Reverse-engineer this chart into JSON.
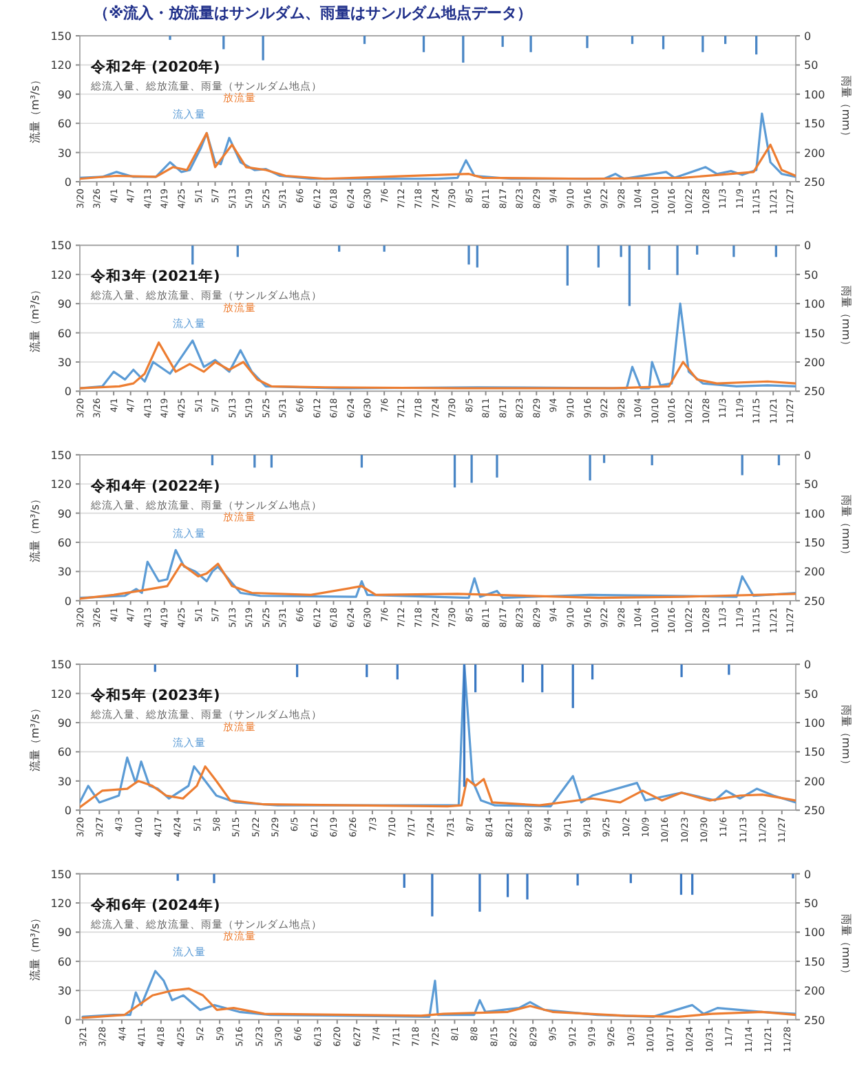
{
  "chart_data": [
    {
      "type": "line",
      "title": "令和2年 (2020年)",
      "subtitle": "総流入量、総放流量、雨量（サンルダム地点）",
      "ylabel": "流量（m³/s）",
      "y2label": "雨量（mm）",
      "annotations": [
        "（※流入・放流量はサンルダム、雨量はサンルダム地点データ）"
      ],
      "grid": "y",
      "ylim": [
        0,
        150
      ],
      "yticks": [
        0,
        30,
        60,
        90,
        120,
        150
      ],
      "y2lim": [
        250,
        0
      ],
      "y2ticks": [
        0,
        50,
        100,
        150,
        200,
        250
      ],
      "xlim": [
        "2020-03-20",
        "2020-11-29"
      ],
      "xticks": [
        {
          "value": "2020-03-20",
          "label": "3/20"
        },
        {
          "value": "2020-03-26",
          "label": "3/26"
        },
        {
          "value": "2020-04-01",
          "label": "4/1"
        },
        {
          "value": "2020-04-07",
          "label": "4/7"
        },
        {
          "value": "2020-04-13",
          "label": "4/13"
        },
        {
          "value": "2020-04-19",
          "label": "4/19"
        },
        {
          "value": "2020-04-25",
          "label": "4/25"
        },
        {
          "value": "2020-05-01",
          "label": "5/1"
        },
        {
          "value": "2020-05-07",
          "label": "5/7"
        },
        {
          "value": "2020-05-13",
          "label": "5/13"
        },
        {
          "value": "2020-05-19",
          "label": "5/19"
        },
        {
          "value": "2020-05-25",
          "label": "5/25"
        },
        {
          "value": "2020-05-31",
          "label": "5/31"
        },
        {
          "value": "2020-06-06",
          "label": "6/6"
        },
        {
          "value": "2020-06-12",
          "label": "6/12"
        },
        {
          "value": "2020-06-18",
          "label": "6/18"
        },
        {
          "value": "2020-06-24",
          "label": "6/24"
        },
        {
          "value": "2020-06-30",
          "label": "6/30"
        },
        {
          "value": "2020-07-06",
          "label": "7/6"
        },
        {
          "value": "2020-07-12",
          "label": "7/12"
        },
        {
          "value": "2020-07-18",
          "label": "7/18"
        },
        {
          "value": "2020-07-24",
          "label": "7/24"
        },
        {
          "value": "2020-07-30",
          "label": "7/30"
        },
        {
          "value": "2020-08-05",
          "label": "8/5"
        },
        {
          "value": "2020-08-11",
          "label": "8/11"
        },
        {
          "value": "2020-08-17",
          "label": "8/17"
        },
        {
          "value": "2020-08-23",
          "label": "8/23"
        },
        {
          "value": "2020-08-29",
          "label": "8/29"
        },
        {
          "value": "2020-09-04",
          "label": "9/4"
        },
        {
          "value": "2020-09-10",
          "label": "9/10"
        },
        {
          "value": "2020-09-16",
          "label": "9/16"
        },
        {
          "value": "2020-09-22",
          "label": "9/22"
        },
        {
          "value": "2020-09-28",
          "label": "9/28"
        },
        {
          "value": "2020-10-04",
          "label": "10/4"
        },
        {
          "value": "2020-10-10",
          "label": "10/10"
        },
        {
          "value": "2020-10-16",
          "label": "10/16"
        },
        {
          "value": "2020-10-22",
          "label": "10/22"
        },
        {
          "value": "2020-10-28",
          "label": "10/28"
        },
        {
          "value": "2020-11-03",
          "label": "11/3"
        },
        {
          "value": "2020-11-09",
          "label": "11/9"
        },
        {
          "value": "2020-11-15",
          "label": "11/15"
        },
        {
          "value": "2020-11-21",
          "label": "11/21"
        },
        {
          "value": "2020-11-27",
          "label": "11/27"
        }
      ],
      "series": [
        {
          "name": "流入量",
          "color": "#5b9bd5",
          "x": [
            "2020-03-20",
            "2020-03-28",
            "2020-04-02",
            "2020-04-08",
            "2020-04-16",
            "2020-04-21",
            "2020-04-25",
            "2020-04-28",
            "2020-05-02",
            "2020-05-04",
            "2020-05-07",
            "2020-05-09",
            "2020-05-12",
            "2020-05-16",
            "2020-05-21",
            "2020-05-25",
            "2020-05-30",
            "2020-06-10",
            "2020-07-25",
            "2020-08-01",
            "2020-08-04",
            "2020-08-07",
            "2020-08-20",
            "2020-09-22",
            "2020-09-26",
            "2020-09-29",
            "2020-10-14",
            "2020-10-17",
            "2020-10-28",
            "2020-11-01",
            "2020-11-06",
            "2020-11-10",
            "2020-11-15",
            "2020-11-17",
            "2020-11-20",
            "2020-11-24",
            "2020-11-29"
          ],
          "values": [
            4,
            5,
            10,
            5,
            5,
            20,
            10,
            12,
            35,
            50,
            20,
            18,
            45,
            20,
            12,
            13,
            6,
            3,
            3,
            4,
            22,
            6,
            3,
            3,
            8,
            3,
            10,
            4,
            15,
            8,
            11,
            7,
            12,
            70,
            20,
            8,
            5
          ]
        },
        {
          "name": "放流量",
          "color": "#ed7d31",
          "x": [
            "2020-03-20",
            "2020-04-02",
            "2020-04-16",
            "2020-04-22",
            "2020-04-27",
            "2020-05-04",
            "2020-05-07",
            "2020-05-13",
            "2020-05-18",
            "2020-05-25",
            "2020-06-01",
            "2020-06-15",
            "2020-08-05",
            "2020-08-10",
            "2020-09-15",
            "2020-10-20",
            "2020-11-06",
            "2020-11-14",
            "2020-11-20",
            "2020-11-24",
            "2020-11-29"
          ],
          "values": [
            3,
            6,
            5,
            15,
            12,
            50,
            15,
            38,
            15,
            12,
            6,
            3,
            8,
            4,
            3,
            4,
            8,
            10,
            38,
            12,
            6
          ]
        },
        {
          "type": "bar",
          "axis": "y2",
          "color": "#4a86c5",
          "x": [
            "2020-04-21",
            "2020-05-10",
            "2020-05-24",
            "2020-06-29",
            "2020-07-20",
            "2020-08-03",
            "2020-08-17",
            "2020-08-27",
            "2020-09-16",
            "2020-10-02",
            "2020-10-13",
            "2020-10-27",
            "2020-11-04",
            "2020-11-15"
          ],
          "values": [
            7,
            23,
            42,
            14,
            28,
            46,
            19,
            28,
            21,
            14,
            23,
            28,
            14,
            32
          ]
        }
      ]
    },
    {
      "type": "line",
      "title": "令和3年 (2021年)",
      "subtitle": "総流入量、総放流量、雨量（サンルダム地点）",
      "ylabel": "流量（m³/s）",
      "y2label": "雨量（mm）",
      "grid": "y",
      "ylim": [
        0,
        150
      ],
      "yticks": [
        0,
        30,
        60,
        90,
        120,
        150
      ],
      "y2lim": [
        250,
        0
      ],
      "y2ticks": [
        0,
        50,
        100,
        150,
        200,
        250
      ],
      "xlim": [
        "2021-03-20",
        "2021-11-29"
      ],
      "xticks": [
        {
          "value": "2021-03-20",
          "label": "3/20"
        },
        {
          "value": "2021-03-26",
          "label": "3/26"
        },
        {
          "value": "2021-04-01",
          "label": "4/1"
        },
        {
          "value": "2021-04-07",
          "label": "4/7"
        },
        {
          "value": "2021-04-13",
          "label": "4/13"
        },
        {
          "value": "2021-04-19",
          "label": "4/19"
        },
        {
          "value": "2021-04-25",
          "label": "4/25"
        },
        {
          "value": "2021-05-01",
          "label": "5/1"
        },
        {
          "value": "2021-05-07",
          "label": "5/7"
        },
        {
          "value": "2021-05-13",
          "label": "5/13"
        },
        {
          "value": "2021-05-19",
          "label": "5/19"
        },
        {
          "value": "2021-05-25",
          "label": "5/25"
        },
        {
          "value": "2021-05-31",
          "label": "5/31"
        },
        {
          "value": "2021-06-06",
          "label": "6/6"
        },
        {
          "value": "2021-06-12",
          "label": "6/12"
        },
        {
          "value": "2021-06-18",
          "label": "6/18"
        },
        {
          "value": "2021-06-24",
          "label": "6/24"
        },
        {
          "value": "2021-06-30",
          "label": "6/30"
        },
        {
          "value": "2021-07-06",
          "label": "7/6"
        },
        {
          "value": "2021-07-12",
          "label": "7/12"
        },
        {
          "value": "2021-07-18",
          "label": "7/18"
        },
        {
          "value": "2021-07-24",
          "label": "7/24"
        },
        {
          "value": "2021-07-30",
          "label": "7/30"
        },
        {
          "value": "2021-08-05",
          "label": "8/5"
        },
        {
          "value": "2021-08-11",
          "label": "8/11"
        },
        {
          "value": "2021-08-17",
          "label": "8/17"
        },
        {
          "value": "2021-08-23",
          "label": "8/23"
        },
        {
          "value": "2021-08-29",
          "label": "8/29"
        },
        {
          "value": "2021-09-04",
          "label": "9/4"
        },
        {
          "value": "2021-09-10",
          "label": "9/10"
        },
        {
          "value": "2021-09-16",
          "label": "9/16"
        },
        {
          "value": "2021-09-22",
          "label": "9/22"
        },
        {
          "value": "2021-09-28",
          "label": "9/28"
        },
        {
          "value": "2021-10-04",
          "label": "10/4"
        },
        {
          "value": "2021-10-10",
          "label": "10/10"
        },
        {
          "value": "2021-10-16",
          "label": "10/16"
        },
        {
          "value": "2021-10-22",
          "label": "10/22"
        },
        {
          "value": "2021-10-28",
          "label": "10/28"
        },
        {
          "value": "2021-11-03",
          "label": "11/3"
        },
        {
          "value": "2021-11-09",
          "label": "11/9"
        },
        {
          "value": "2021-11-15",
          "label": "11/15"
        },
        {
          "value": "2021-11-21",
          "label": "11/21"
        },
        {
          "value": "2021-11-27",
          "label": "11/27"
        }
      ],
      "series": [
        {
          "name": "流入量",
          "color": "#5b9bd5",
          "x": [
            "2021-03-20",
            "2021-03-28",
            "2021-04-01",
            "2021-04-05",
            "2021-04-08",
            "2021-04-12",
            "2021-04-15",
            "2021-04-21",
            "2021-04-29",
            "2021-05-03",
            "2021-05-07",
            "2021-05-12",
            "2021-05-16",
            "2021-05-20",
            "2021-05-25",
            "2021-06-20",
            "2021-08-08",
            "2021-09-30",
            "2021-10-02",
            "2021-10-05",
            "2021-10-08",
            "2021-10-09",
            "2021-10-12",
            "2021-10-16",
            "2021-10-19",
            "2021-10-22",
            "2021-10-27",
            "2021-11-08",
            "2021-11-19",
            "2021-11-29"
          ],
          "values": [
            3,
            5,
            20,
            12,
            22,
            10,
            30,
            18,
            52,
            25,
            32,
            20,
            42,
            20,
            5,
            3,
            4,
            3,
            25,
            3,
            3,
            30,
            6,
            8,
            90,
            20,
            8,
            5,
            6,
            5
          ]
        },
        {
          "name": "放流量",
          "color": "#ed7d31",
          "x": [
            "2021-03-20",
            "2021-04-03",
            "2021-04-08",
            "2021-04-12",
            "2021-04-17",
            "2021-04-23",
            "2021-04-28",
            "2021-05-03",
            "2021-05-07",
            "2021-05-12",
            "2021-05-17",
            "2021-05-22",
            "2021-05-27",
            "2021-06-15",
            "2021-08-01",
            "2021-09-25",
            "2021-10-15",
            "2021-10-20",
            "2021-10-25",
            "2021-11-01",
            "2021-11-19",
            "2021-11-29"
          ],
          "values": [
            3,
            5,
            8,
            18,
            50,
            20,
            28,
            20,
            30,
            22,
            30,
            12,
            5,
            4,
            3,
            3,
            5,
            30,
            12,
            8,
            10,
            8
          ]
        },
        {
          "type": "bar",
          "axis": "y2",
          "color": "#4a86c5",
          "x": [
            "2021-04-29",
            "2021-05-15",
            "2021-06-20",
            "2021-07-06",
            "2021-08-05",
            "2021-08-08",
            "2021-09-09",
            "2021-09-20",
            "2021-09-28",
            "2021-10-01",
            "2021-10-08",
            "2021-10-18",
            "2021-10-25",
            "2021-11-07",
            "2021-11-22"
          ],
          "values": [
            33,
            20,
            11,
            11,
            33,
            38,
            69,
            38,
            20,
            104,
            42,
            51,
            16,
            20,
            20
          ]
        }
      ]
    },
    {
      "type": "line",
      "title": "令和4年 (2022年)",
      "subtitle": "総流入量、総放流量、雨量（サンルダム地点）",
      "ylabel": "流量（m³/s）",
      "y2label": "雨量（mm）",
      "grid": "y",
      "ylim": [
        0,
        150
      ],
      "yticks": [
        0,
        30,
        60,
        90,
        120,
        150
      ],
      "y2lim": [
        250,
        0
      ],
      "y2ticks": [
        0,
        50,
        100,
        150,
        200,
        250
      ],
      "xlim": [
        "2022-03-20",
        "2022-11-29"
      ],
      "xticks": [
        {
          "value": "2022-03-20",
          "label": "3/20"
        },
        {
          "value": "2022-03-26",
          "label": "3/26"
        },
        {
          "value": "2022-04-01",
          "label": "4/1"
        },
        {
          "value": "2022-04-07",
          "label": "4/7"
        },
        {
          "value": "2022-04-13",
          "label": "4/13"
        },
        {
          "value": "2022-04-19",
          "label": "4/19"
        },
        {
          "value": "2022-04-25",
          "label": "4/25"
        },
        {
          "value": "2022-05-01",
          "label": "5/1"
        },
        {
          "value": "2022-05-07",
          "label": "5/7"
        },
        {
          "value": "2022-05-13",
          "label": "5/13"
        },
        {
          "value": "2022-05-19",
          "label": "5/19"
        },
        {
          "value": "2022-05-25",
          "label": "5/25"
        },
        {
          "value": "2022-05-31",
          "label": "5/31"
        },
        {
          "value": "2022-06-06",
          "label": "6/6"
        },
        {
          "value": "2022-06-12",
          "label": "6/12"
        },
        {
          "value": "2022-06-18",
          "label": "6/18"
        },
        {
          "value": "2022-06-24",
          "label": "6/24"
        },
        {
          "value": "2022-06-30",
          "label": "6/30"
        },
        {
          "value": "2022-07-06",
          "label": "7/6"
        },
        {
          "value": "2022-07-12",
          "label": "7/12"
        },
        {
          "value": "2022-07-18",
          "label": "7/18"
        },
        {
          "value": "2022-07-24",
          "label": "7/24"
        },
        {
          "value": "2022-07-30",
          "label": "7/30"
        },
        {
          "value": "2022-08-05",
          "label": "8/5"
        },
        {
          "value": "2022-08-11",
          "label": "8/11"
        },
        {
          "value": "2022-08-17",
          "label": "8/17"
        },
        {
          "value": "2022-08-23",
          "label": "8/23"
        },
        {
          "value": "2022-08-29",
          "label": "8/29"
        },
        {
          "value": "2022-09-04",
          "label": "9/4"
        },
        {
          "value": "2022-09-10",
          "label": "9/10"
        },
        {
          "value": "2022-09-16",
          "label": "9/16"
        },
        {
          "value": "2022-09-22",
          "label": "9/22"
        },
        {
          "value": "2022-09-28",
          "label": "9/28"
        },
        {
          "value": "2022-10-04",
          "label": "10/4"
        },
        {
          "value": "2022-10-10",
          "label": "10/10"
        },
        {
          "value": "2022-10-16",
          "label": "10/16"
        },
        {
          "value": "2022-10-22",
          "label": "10/22"
        },
        {
          "value": "2022-10-28",
          "label": "10/28"
        },
        {
          "value": "2022-11-03",
          "label": "11/3"
        },
        {
          "value": "2022-11-09",
          "label": "11/9"
        },
        {
          "value": "2022-11-15",
          "label": "11/15"
        },
        {
          "value": "2022-11-21",
          "label": "11/21"
        },
        {
          "value": "2022-11-27",
          "label": "11/27"
        }
      ],
      "series": [
        {
          "name": "流入量",
          "color": "#5b9bd5",
          "x": [
            "2022-03-20",
            "2022-04-05",
            "2022-04-09",
            "2022-04-11",
            "2022-04-13",
            "2022-04-17",
            "2022-04-20",
            "2022-04-23",
            "2022-04-26",
            "2022-04-30",
            "2022-05-04",
            "2022-05-06",
            "2022-05-08",
            "2022-05-11",
            "2022-05-16",
            "2022-05-23",
            "2022-06-26",
            "2022-06-28",
            "2022-06-30",
            "2022-08-05",
            "2022-08-07",
            "2022-08-09",
            "2022-08-15",
            "2022-08-17",
            "2022-09-17",
            "2022-11-08",
            "2022-11-10",
            "2022-11-14",
            "2022-11-29"
          ],
          "values": [
            3,
            5,
            12,
            8,
            40,
            20,
            22,
            52,
            35,
            30,
            20,
            30,
            35,
            25,
            8,
            5,
            4,
            20,
            6,
            3,
            23,
            4,
            10,
            3,
            6,
            4,
            25,
            5,
            8
          ]
        },
        {
          "name": "放流量",
          "color": "#ed7d31",
          "x": [
            "2022-03-20",
            "2022-04-01",
            "2022-04-10",
            "2022-04-20",
            "2022-04-25",
            "2022-05-01",
            "2022-05-04",
            "2022-05-08",
            "2022-05-13",
            "2022-05-20",
            "2022-06-10",
            "2022-06-28",
            "2022-07-03",
            "2022-08-01",
            "2022-09-20",
            "2022-10-20",
            "2022-11-29"
          ],
          "values": [
            2,
            6,
            10,
            15,
            38,
            25,
            28,
            38,
            15,
            8,
            6,
            15,
            6,
            7,
            3,
            4,
            7
          ]
        },
        {
          "type": "bar",
          "axis": "y2",
          "color": "#4a86c5",
          "x": [
            "2022-05-06",
            "2022-05-21",
            "2022-05-27",
            "2022-06-28",
            "2022-07-31",
            "2022-08-06",
            "2022-08-15",
            "2022-09-17",
            "2022-09-22",
            "2022-10-09",
            "2022-11-10",
            "2022-11-23"
          ],
          "values": [
            18,
            22,
            22,
            22,
            56,
            48,
            39,
            44,
            14,
            18,
            35,
            18
          ]
        }
      ]
    },
    {
      "type": "line",
      "title": "令和5年 (2023年)",
      "subtitle": "総流入量、総放流量、雨量（サンルダム地点）",
      "ylabel": "流量（m³/s）",
      "y2label": "雨量（mm）",
      "grid": "y",
      "ylim": [
        0,
        150
      ],
      "yticks": [
        0,
        30,
        60,
        90,
        120,
        150
      ],
      "y2lim": [
        250,
        0
      ],
      "y2ticks": [
        0,
        50,
        100,
        150,
        200,
        250
      ],
      "xlim": [
        "2023-03-20",
        "2023-12-02"
      ],
      "xticks": [
        {
          "value": "2023-03-20",
          "label": "3/20"
        },
        {
          "value": "2023-03-27",
          "label": "3/27"
        },
        {
          "value": "2023-04-03",
          "label": "4/3"
        },
        {
          "value": "2023-04-10",
          "label": "4/10"
        },
        {
          "value": "2023-04-17",
          "label": "4/17"
        },
        {
          "value": "2023-04-24",
          "label": "4/24"
        },
        {
          "value": "2023-05-01",
          "label": "5/1"
        },
        {
          "value": "2023-05-08",
          "label": "5/8"
        },
        {
          "value": "2023-05-15",
          "label": "5/15"
        },
        {
          "value": "2023-05-22",
          "label": "5/22"
        },
        {
          "value": "2023-05-29",
          "label": "5/29"
        },
        {
          "value": "2023-06-05",
          "label": "6/5"
        },
        {
          "value": "2023-06-12",
          "label": "6/12"
        },
        {
          "value": "2023-06-19",
          "label": "6/19"
        },
        {
          "value": "2023-06-26",
          "label": "6/26"
        },
        {
          "value": "2023-07-03",
          "label": "7/3"
        },
        {
          "value": "2023-07-10",
          "label": "7/10"
        },
        {
          "value": "2023-07-17",
          "label": "7/17"
        },
        {
          "value": "2023-07-24",
          "label": "7/24"
        },
        {
          "value": "2023-07-31",
          "label": "7/31"
        },
        {
          "value": "2023-08-07",
          "label": "8/7"
        },
        {
          "value": "2023-08-14",
          "label": "8/14"
        },
        {
          "value": "2023-08-21",
          "label": "8/21"
        },
        {
          "value": "2023-08-28",
          "label": "8/28"
        },
        {
          "value": "2023-09-04",
          "label": "9/4"
        },
        {
          "value": "2023-09-11",
          "label": "9/11"
        },
        {
          "value": "2023-09-18",
          "label": "9/18"
        },
        {
          "value": "2023-09-25",
          "label": "9/25"
        },
        {
          "value": "2023-10-02",
          "label": "10/2"
        },
        {
          "value": "2023-10-09",
          "label": "10/9"
        },
        {
          "value": "2023-10-16",
          "label": "10/16"
        },
        {
          "value": "2023-10-23",
          "label": "10/23"
        },
        {
          "value": "2023-10-30",
          "label": "10/30"
        },
        {
          "value": "2023-11-06",
          "label": "11/6"
        },
        {
          "value": "2023-11-13",
          "label": "11/13"
        },
        {
          "value": "2023-11-20",
          "label": "11/20"
        },
        {
          "value": "2023-11-27",
          "label": "11/27"
        }
      ],
      "series": [
        {
          "name": "流入量",
          "color": "#5b9bd5",
          "x": [
            "2023-03-20",
            "2023-03-23",
            "2023-03-27",
            "2023-04-03",
            "2023-04-06",
            "2023-04-09",
            "2023-04-11",
            "2023-04-14",
            "2023-04-17",
            "2023-04-21",
            "2023-04-28",
            "2023-04-30",
            "2023-05-04",
            "2023-05-08",
            "2023-05-15",
            "2023-05-30",
            "2023-08-03",
            "2023-08-05",
            "2023-08-08",
            "2023-08-11",
            "2023-08-16",
            "2023-09-05",
            "2023-09-13",
            "2023-09-16",
            "2023-09-20",
            "2023-10-06",
            "2023-10-09",
            "2023-10-22",
            "2023-11-03",
            "2023-11-07",
            "2023-11-12",
            "2023-11-18",
            "2023-11-24",
            "2023-12-02"
          ],
          "values": [
            8,
            25,
            8,
            15,
            54,
            28,
            50,
            25,
            22,
            12,
            25,
            45,
            30,
            15,
            8,
            5,
            5,
            150,
            30,
            10,
            5,
            4,
            35,
            8,
            15,
            28,
            10,
            18,
            10,
            20,
            12,
            22,
            15,
            8
          ]
        },
        {
          "name": "放流量",
          "color": "#ed7d31",
          "x": [
            "2023-03-20",
            "2023-03-28",
            "2023-04-06",
            "2023-04-10",
            "2023-04-15",
            "2023-04-20",
            "2023-04-26",
            "2023-05-01",
            "2023-05-04",
            "2023-05-08",
            "2023-05-13",
            "2023-05-25",
            "2023-07-30",
            "2023-08-04",
            "2023-08-06",
            "2023-08-09",
            "2023-08-12",
            "2023-08-15",
            "2023-09-01",
            "2023-09-20",
            "2023-09-30",
            "2023-10-08",
            "2023-10-15",
            "2023-10-22",
            "2023-11-01",
            "2023-11-12",
            "2023-11-20",
            "2023-12-02"
          ],
          "values": [
            3,
            20,
            22,
            30,
            25,
            15,
            12,
            25,
            45,
            30,
            10,
            6,
            4,
            5,
            32,
            25,
            32,
            8,
            5,
            12,
            8,
            20,
            10,
            18,
            10,
            15,
            16,
            10
          ]
        },
        {
          "type": "bar",
          "axis": "y2",
          "color": "#3a78c2",
          "x": [
            "2023-04-16",
            "2023-06-06",
            "2023-07-01",
            "2023-07-12",
            "2023-08-05",
            "2023-08-09",
            "2023-08-26",
            "2023-09-02",
            "2023-09-13",
            "2023-09-20",
            "2023-10-22",
            "2023-11-08"
          ],
          "values": [
            13,
            22,
            22,
            26,
            210,
            48,
            31,
            48,
            75,
            26,
            22,
            18
          ]
        }
      ]
    },
    {
      "type": "line",
      "title": "令和6年 (2024年)",
      "subtitle": "総流入量、総放流量、雨量（サンルダム地点）",
      "ylabel": "流量（m³/s）",
      "y2label": "雨量（mm）",
      "grid": "y",
      "ylim": [
        0,
        150
      ],
      "yticks": [
        0,
        30,
        60,
        90,
        120,
        150
      ],
      "y2lim": [
        250,
        0
      ],
      "y2ticks": [
        0,
        50,
        100,
        150,
        200,
        250
      ],
      "xlim": [
        "2024-03-20",
        "2024-12-01"
      ],
      "xticks": [
        {
          "value": "2024-03-21",
          "label": "3/21"
        },
        {
          "value": "2024-03-28",
          "label": "3/28"
        },
        {
          "value": "2024-04-04",
          "label": "4/4"
        },
        {
          "value": "2024-04-11",
          "label": "4/11"
        },
        {
          "value": "2024-04-18",
          "label": "4/18"
        },
        {
          "value": "2024-04-25",
          "label": "4/25"
        },
        {
          "value": "2024-05-02",
          "label": "5/2"
        },
        {
          "value": "2024-05-09",
          "label": "5/9"
        },
        {
          "value": "2024-05-16",
          "label": "5/16"
        },
        {
          "value": "2024-05-23",
          "label": "5/23"
        },
        {
          "value": "2024-05-30",
          "label": "5/30"
        },
        {
          "value": "2024-06-06",
          "label": "6/6"
        },
        {
          "value": "2024-06-13",
          "label": "6/13"
        },
        {
          "value": "2024-06-20",
          "label": "6/20"
        },
        {
          "value": "2024-06-27",
          "label": "6/27"
        },
        {
          "value": "2024-07-04",
          "label": "7/4"
        },
        {
          "value": "2024-07-11",
          "label": "7/11"
        },
        {
          "value": "2024-07-18",
          "label": "7/18"
        },
        {
          "value": "2024-07-25",
          "label": "7/25"
        },
        {
          "value": "2024-08-01",
          "label": "8/1"
        },
        {
          "value": "2024-08-08",
          "label": "8/8"
        },
        {
          "value": "2024-08-15",
          "label": "8/15"
        },
        {
          "value": "2024-08-22",
          "label": "8/22"
        },
        {
          "value": "2024-08-29",
          "label": "8/29"
        },
        {
          "value": "2024-09-05",
          "label": "9/5"
        },
        {
          "value": "2024-09-12",
          "label": "9/12"
        },
        {
          "value": "2024-09-19",
          "label": "9/19"
        },
        {
          "value": "2024-09-26",
          "label": "9/26"
        },
        {
          "value": "2024-10-03",
          "label": "10/3"
        },
        {
          "value": "2024-10-10",
          "label": "10/10"
        },
        {
          "value": "2024-10-17",
          "label": "10/17"
        },
        {
          "value": "2024-10-24",
          "label": "10/24"
        },
        {
          "value": "2024-10-31",
          "label": "10/31"
        },
        {
          "value": "2024-11-07",
          "label": "11/7"
        },
        {
          "value": "2024-11-14",
          "label": "11/14"
        },
        {
          "value": "2024-11-21",
          "label": "11/21"
        },
        {
          "value": "2024-11-28",
          "label": "11/28"
        }
      ],
      "series": [
        {
          "name": "流入量",
          "color": "#5b9bd5",
          "x": [
            "2024-03-21",
            "2024-04-01",
            "2024-04-07",
            "2024-04-09",
            "2024-04-11",
            "2024-04-16",
            "2024-04-19",
            "2024-04-22",
            "2024-04-26",
            "2024-05-02",
            "2024-05-07",
            "2024-05-16",
            "2024-05-27",
            "2024-07-23",
            "2024-07-25",
            "2024-07-26",
            "2024-08-08",
            "2024-08-10",
            "2024-08-12",
            "2024-08-24",
            "2024-08-28",
            "2024-09-02",
            "2024-09-21",
            "2024-10-11",
            "2024-10-25",
            "2024-10-29",
            "2024-11-03",
            "2024-11-19",
            "2024-12-01"
          ],
          "values": [
            3,
            5,
            5,
            28,
            15,
            50,
            40,
            20,
            25,
            10,
            15,
            8,
            5,
            3,
            40,
            5,
            5,
            20,
            8,
            12,
            18,
            10,
            5,
            3,
            15,
            6,
            12,
            8,
            6
          ]
        },
        {
          "name": "放流量",
          "color": "#ed7d31",
          "x": [
            "2024-03-21",
            "2024-04-05",
            "2024-04-15",
            "2024-04-22",
            "2024-04-28",
            "2024-05-03",
            "2024-05-08",
            "2024-05-14",
            "2024-05-25",
            "2024-07-20",
            "2024-07-28",
            "2024-08-20",
            "2024-08-28",
            "2024-09-05",
            "2024-10-01",
            "2024-10-20",
            "2024-11-01",
            "2024-11-19",
            "2024-12-01"
          ],
          "values": [
            2,
            5,
            25,
            30,
            32,
            25,
            10,
            12,
            6,
            4,
            6,
            8,
            14,
            8,
            4,
            3,
            6,
            8,
            5
          ]
        },
        {
          "type": "bar",
          "axis": "y2",
          "color": "#3a78c2",
          "x": [
            "2024-04-24",
            "2024-05-07",
            "2024-07-14",
            "2024-07-24",
            "2024-08-10",
            "2024-08-20",
            "2024-08-27",
            "2024-09-14",
            "2024-10-03",
            "2024-10-21",
            "2024-10-25",
            "2024-11-30"
          ],
          "values": [
            12,
            16,
            24,
            73,
            65,
            40,
            44,
            20,
            16,
            36,
            36,
            8
          ]
        }
      ]
    }
  ]
}
